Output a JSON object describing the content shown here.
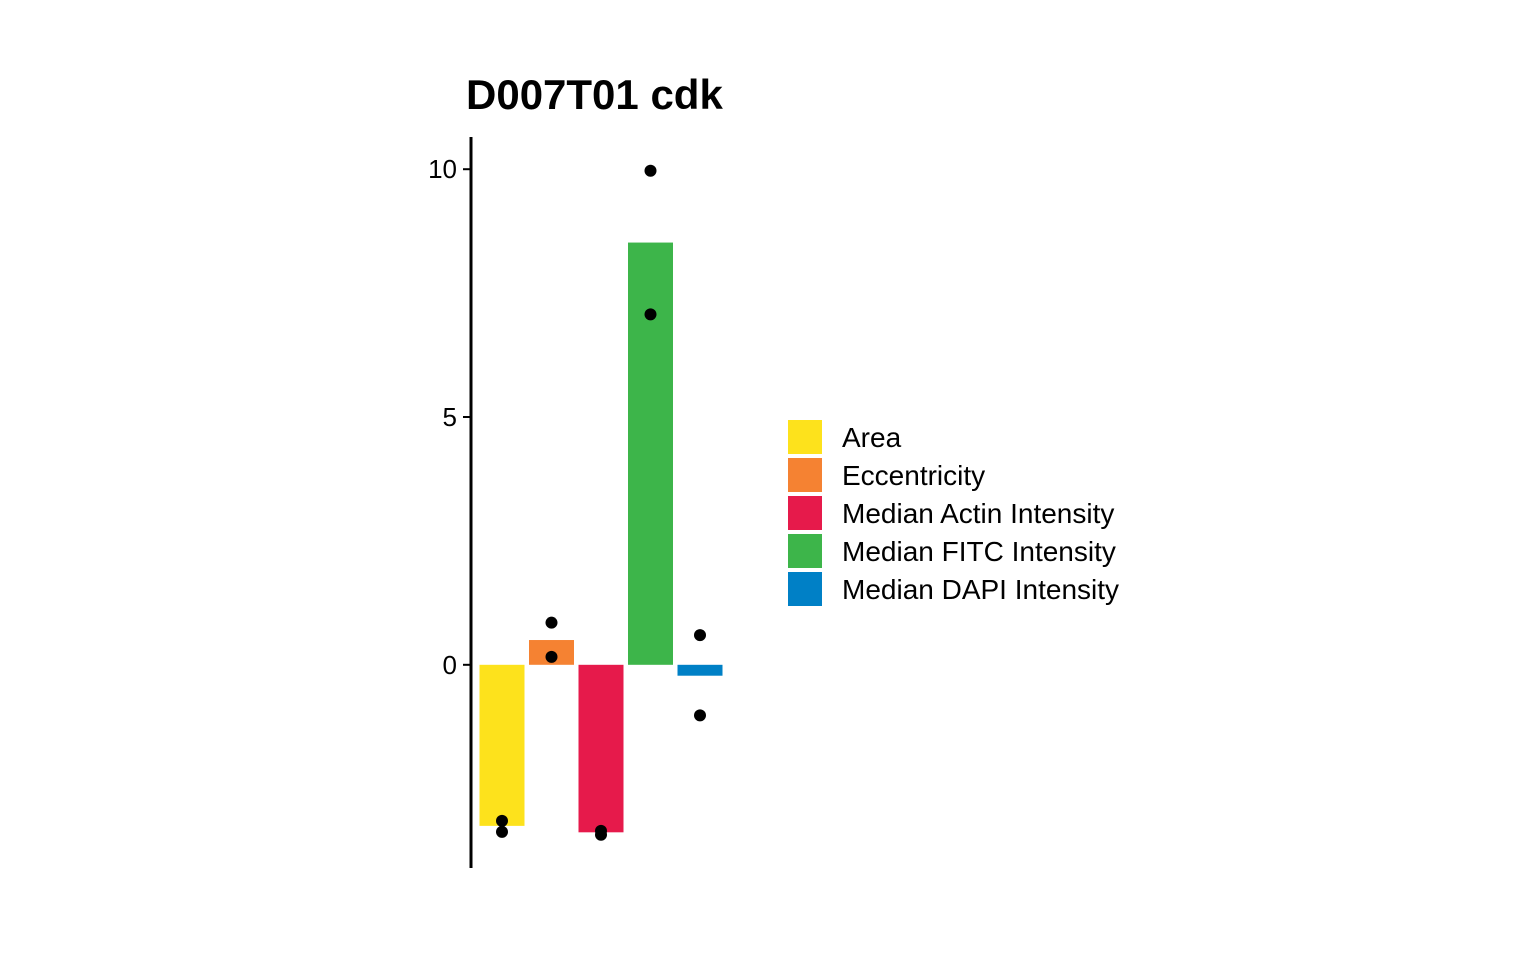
{
  "chart_data": {
    "type": "bar",
    "title": "D007T01 cdk",
    "xlabel": "",
    "ylabel": "",
    "ylim": [
      -4.1,
      10.65
    ],
    "yticks": [
      0,
      5,
      10
    ],
    "grid": false,
    "legend_position": "right",
    "categories": [
      "Area",
      "Eccentricity",
      "Median Actin Intensity",
      "Median FITC Intensity",
      "Median DAPI Intensity"
    ],
    "values": [
      -3.25,
      0.5,
      -3.38,
      8.52,
      -0.22
    ],
    "colors": [
      "#FDE21C",
      "#F58232",
      "#E61A4B",
      "#3DB54A",
      "#0080C6"
    ],
    "points": [
      [
        -3.15,
        -3.37
      ],
      [
        0.85,
        0.16
      ],
      [
        -3.35,
        -3.43
      ],
      [
        9.97,
        7.07
      ],
      [
        0.6,
        -1.02
      ]
    ],
    "point_color": "#000000"
  }
}
